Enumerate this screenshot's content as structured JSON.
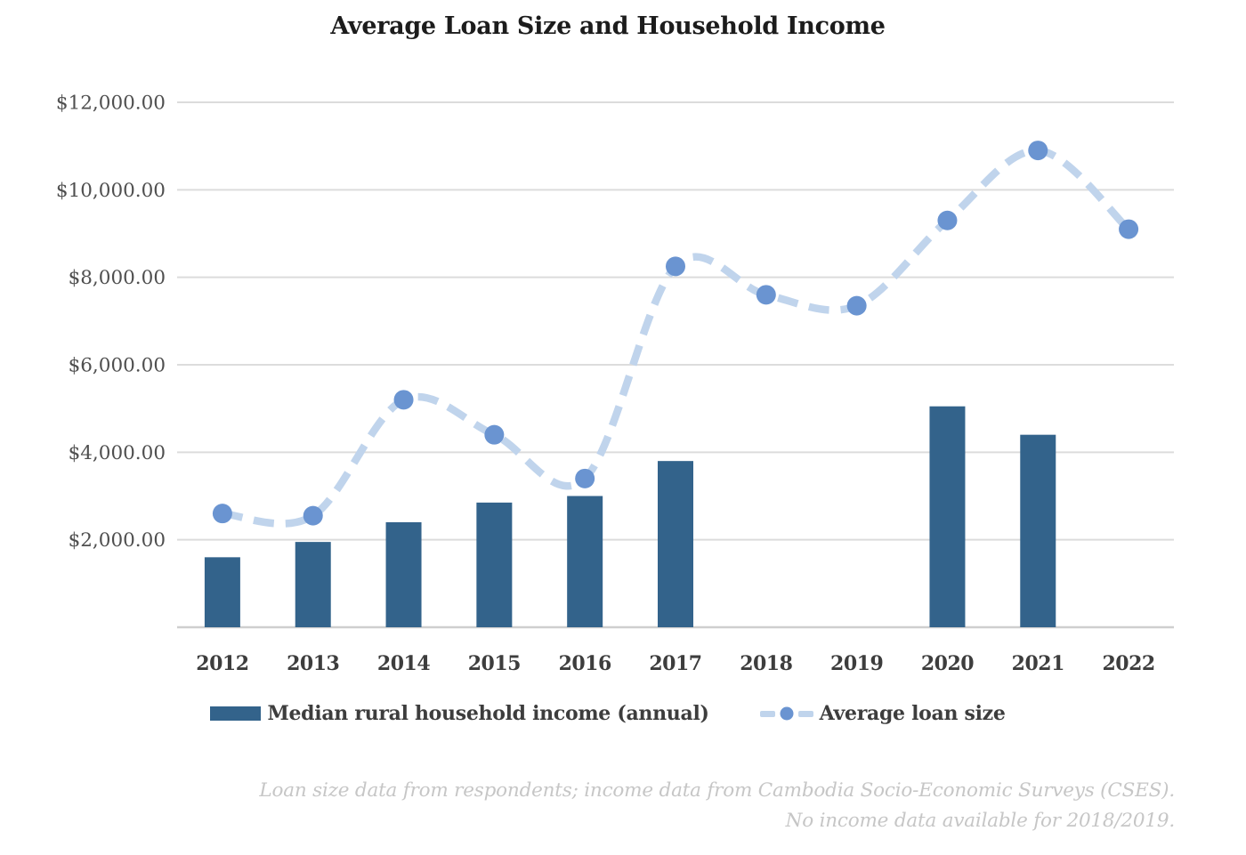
{
  "title": "Average Loan Size and Household Income",
  "legend": {
    "income_label": "Median rural household income (annual)",
    "loan_label": "Average loan size"
  },
  "footnote": {
    "line1": "Loan size data from respondents; income data from Cambodia Socio-Economic Surveys (CSES).",
    "line2": "No income data available for 2018/2019."
  },
  "colors": {
    "bar": "#33638b",
    "line": "#c0d4ec",
    "marker": "#6a94d1",
    "grid": "#dcdcdc",
    "axis_line": "#cfcfcf",
    "title_text": "#1c1c1c",
    "ytick_text": "#4f4f4f",
    "xtick_text": "#3d3d3d",
    "legend_text": "#3d3d3d",
    "footnote_text": "#c6c6c6"
  },
  "chart_data": {
    "type": "bar",
    "title": "Average Loan Size and Household Income",
    "categories": [
      "2012",
      "2013",
      "2014",
      "2015",
      "2016",
      "2017",
      "2018",
      "2019",
      "2020",
      "2021",
      "2022"
    ],
    "series": [
      {
        "name": "Median rural household income (annual)",
        "type": "bar",
        "values": [
          1600,
          1950,
          2400,
          2850,
          3000,
          3800,
          null,
          null,
          5050,
          4400,
          null
        ]
      },
      {
        "name": "Average loan size",
        "type": "line",
        "values": [
          2600,
          2550,
          5200,
          4400,
          3400,
          8250,
          7600,
          7350,
          9300,
          10900,
          9100
        ]
      }
    ],
    "ylim": [
      0,
      12000
    ],
    "ytick_interval": 2000,
    "yticks": [
      2000,
      4000,
      6000,
      8000,
      10000,
      12000
    ],
    "ytick_labels": [
      "$2,000.00",
      "$4,000.00",
      "$6,000.00",
      "$8,000.00",
      "$10,000.00",
      "$12,000.00"
    ],
    "xlabel": "",
    "ylabel": "",
    "grid": true,
    "legend_position": "bottom"
  }
}
